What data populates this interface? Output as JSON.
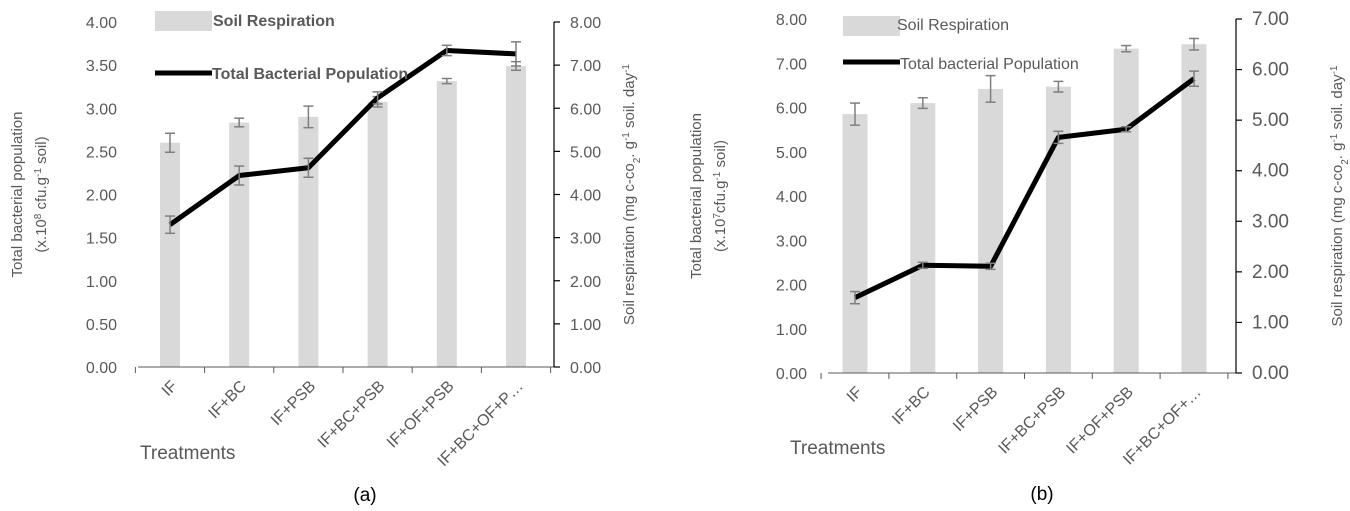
{
  "charts": [
    {
      "panel_label": "(a)",
      "x_title": "Treatments",
      "y_left_title_lines": [
        {
          "text": "Total bacterial population"
        },
        {
          "text": "(x.10",
          "sup": "8",
          "after": " cfu.g",
          "sup2": "-1",
          "after2": " soil)"
        }
      ],
      "y_right_title": {
        "text": "Soil respiration (mg c-co",
        "sub": "2",
        "after": ". g",
        "sup": "-1",
        "after2": " soil. day",
        "sup2": "-1"
      },
      "legend": {
        "bar": "Soil Respiration",
        "line": "Total Bacterial Population",
        "bold": true
      },
      "left_ticks": [
        "0.00",
        "0.50",
        "1.00",
        "1.50",
        "2.00",
        "2.50",
        "3.00",
        "3.50",
        "4.00"
      ],
      "right_ticks": [
        "0.00",
        "1.00",
        "2.00",
        "3.00",
        "4.00",
        "5.00",
        "6.00",
        "7.00",
        "8.00"
      ],
      "category_labels": [
        "IF",
        "IF+BC",
        "IF+PSB",
        "IF+BC+PSB",
        "IF+OF+PSB",
        "IF+BC+OF+P…"
      ]
    },
    {
      "panel_label": "(b)",
      "x_title": "Treatments",
      "y_left_title_lines": [
        {
          "text": "Total bacterial population"
        },
        {
          "text": "(x.10",
          "sup": "7",
          "after": "cfu.g",
          "sup2": "-1",
          "after2": "  soil)"
        }
      ],
      "y_right_title": {
        "text": "Soil respiration (mg c-co",
        "sub": "2",
        "after": ". g",
        "sup": "-1",
        "after2": " soil. day",
        "sup2": "-1"
      },
      "legend": {
        "bar": "Soil Respiration",
        "line": "Total bacterial Population",
        "bold": false
      },
      "left_ticks": [
        "0.00",
        "1.00",
        "2.00",
        "3.00",
        "4.00",
        "5.00",
        "6.00",
        "7.00",
        "8.00"
      ],
      "right_ticks": [
        "0.00",
        "1.00",
        "2.00",
        "3.00",
        "4.00",
        "5.00",
        "6.00",
        "7.00"
      ],
      "category_labels": [
        "IF",
        "IF+BC",
        "IF+PSB",
        "IF+BC+PSB",
        "IF+OF+PSB",
        "IF+BC+OF+…"
      ]
    }
  ],
  "colors": {
    "bar": "#d9d9d9",
    "line": "#000000",
    "error": "#7f7f7f",
    "axis": "#595959"
  },
  "chart_data": [
    {
      "type": "bar+line",
      "categories": [
        "IF",
        "IF+BC",
        "IF+PSB",
        "IF+BC+PSB",
        "IF+OF+PSB",
        "IF+BC+OF+PSB"
      ],
      "series": [
        {
          "name": "Soil Respiration",
          "kind": "bar",
          "axis": "right",
          "values": [
            5.2,
            5.67,
            5.8,
            6.15,
            6.63,
            6.98
          ],
          "errors": [
            0.22,
            0.1,
            0.25,
            0.12,
            0.06,
            0.1
          ]
        },
        {
          "name": "Total Bacterial Population",
          "kind": "line",
          "axis": "left",
          "values": [
            1.65,
            2.22,
            2.31,
            3.12,
            3.67,
            3.63
          ],
          "errors": [
            0.1,
            0.11,
            0.11,
            0.07,
            0.06,
            0.14
          ]
        }
      ],
      "ylim_left": [
        0,
        4
      ],
      "ylim_right": [
        0,
        8
      ],
      "xlabel": "Treatments",
      "ylabel_left": "Total bacterial population (x.10^8 cfu.g^-1 soil)",
      "ylabel_right": "Soil respiration (mg c-co2. g^-1 soil. day^-1)",
      "legend": "top-left",
      "grid": false
    },
    {
      "type": "bar+line",
      "categories": [
        "IF",
        "IF+BC",
        "IF+PSB",
        "IF+BC+PSB",
        "IF+OF+PSB",
        "IF+BC+OF+PSB"
      ],
      "series": [
        {
          "name": "Soil Respiration",
          "kind": "bar",
          "axis": "left",
          "values": [
            5.85,
            6.1,
            6.42,
            6.47,
            7.33,
            7.43
          ],
          "errors": [
            0.25,
            0.12,
            0.3,
            0.12,
            0.07,
            0.13
          ]
        },
        {
          "name": "Total bacterial Population",
          "kind": "line",
          "axis": "right",
          "values": [
            1.49,
            2.13,
            2.11,
            4.66,
            4.82,
            5.82
          ],
          "errors": [
            0.12,
            0.06,
            0.06,
            0.12,
            0.05,
            0.15
          ]
        }
      ],
      "ylim_left": [
        0,
        8
      ],
      "ylim_right": [
        0,
        7
      ],
      "xlabel": "Treatments",
      "ylabel_left": "Total bacterial population (x.10^7 cfu.g^-1 soil)",
      "ylabel_right": "Soil respiration (mg c-co2. g^-1 soil. day^-1)",
      "legend": "top-left",
      "grid": false
    }
  ]
}
